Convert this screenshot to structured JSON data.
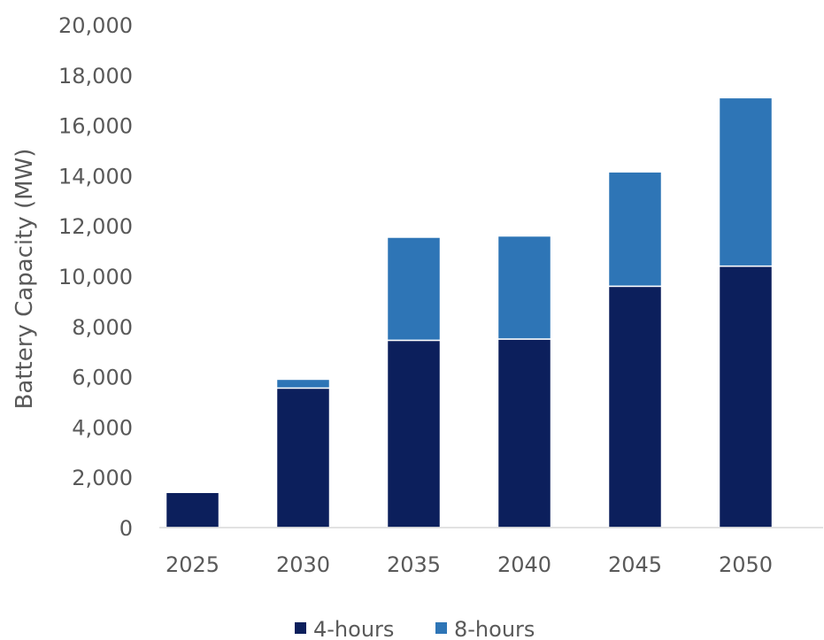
{
  "chart_data": {
    "type": "bar",
    "stacked": true,
    "categories": [
      "2025",
      "2030",
      "2035",
      "2040",
      "2045",
      "2050"
    ],
    "series": [
      {
        "name": "4-hours",
        "color": "#0c1f5c",
        "values": [
          1400,
          5550,
          7450,
          7500,
          9600,
          10400
        ]
      },
      {
        "name": "8-hours",
        "color": "#2e75b6",
        "values": [
          0,
          350,
          4100,
          4100,
          4550,
          6700
        ]
      }
    ],
    "ylabel": "Battery Capacity (MW)",
    "ylim": [
      0,
      20000
    ],
    "yticks": [
      0,
      2000,
      4000,
      6000,
      8000,
      10000,
      12000,
      14000,
      16000,
      18000,
      20000
    ],
    "ytick_labels": [
      "0",
      "2,000",
      "4,000",
      "6,000",
      "8,000",
      "10,000",
      "12,000",
      "14,000",
      "16,000",
      "18,000",
      "20,000"
    ],
    "grid": false,
    "legend_position": "bottom"
  }
}
